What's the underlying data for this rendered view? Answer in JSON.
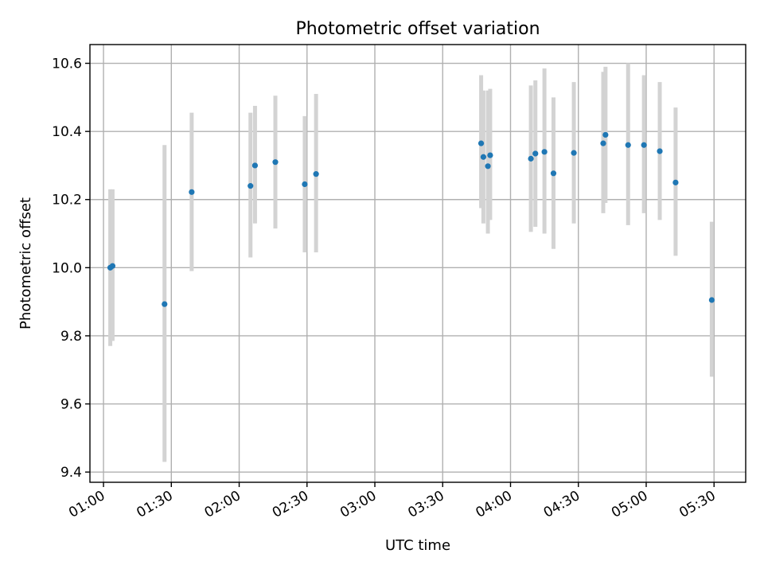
{
  "chart_data": {
    "type": "scatter",
    "title": "Photometric offset variation",
    "xlabel": "UTC time",
    "ylabel": "Photometric offset",
    "x_range": [
      "00:54",
      "05:44"
    ],
    "ylim": [
      9.37,
      10.655
    ],
    "x_ticks": [
      "01:00",
      "01:30",
      "02:00",
      "02:30",
      "03:00",
      "03:30",
      "04:00",
      "04:30",
      "05:00",
      "05:30"
    ],
    "y_ticks": [
      "9.4",
      "9.6",
      "9.8",
      "10.0",
      "10.2",
      "10.4",
      "10.6"
    ],
    "grid": true,
    "point_color": "#1f77b4",
    "errorbar_color": "#d3d3d3",
    "points": [
      {
        "x": "01:03",
        "y": 10.0,
        "err_low": 9.77,
        "err_high": 10.23
      },
      {
        "x": "01:04",
        "y": 10.005,
        "err_low": 9.785,
        "err_high": 10.23
      },
      {
        "x": "01:27",
        "y": 9.893,
        "err_low": 9.43,
        "err_high": 10.36
      },
      {
        "x": "01:39",
        "y": 10.222,
        "err_low": 9.99,
        "err_high": 10.455
      },
      {
        "x": "02:05",
        "y": 10.24,
        "err_low": 10.03,
        "err_high": 10.455
      },
      {
        "x": "02:07",
        "y": 10.3,
        "err_low": 10.13,
        "err_high": 10.475
      },
      {
        "x": "02:16",
        "y": 10.31,
        "err_low": 10.115,
        "err_high": 10.505
      },
      {
        "x": "02:29",
        "y": 10.245,
        "err_low": 10.045,
        "err_high": 10.445
      },
      {
        "x": "02:34",
        "y": 10.275,
        "err_low": 10.045,
        "err_high": 10.51
      },
      {
        "x": "03:47",
        "y": 10.365,
        "err_low": 10.175,
        "err_high": 10.565
      },
      {
        "x": "03:48",
        "y": 10.325,
        "err_low": 10.13,
        "err_high": 10.52
      },
      {
        "x": "03:50",
        "y": 10.298,
        "err_low": 10.1,
        "err_high": 10.52
      },
      {
        "x": "03:51",
        "y": 10.33,
        "err_low": 10.14,
        "err_high": 10.525
      },
      {
        "x": "04:09",
        "y": 10.32,
        "err_low": 10.105,
        "err_high": 10.535
      },
      {
        "x": "04:11",
        "y": 10.335,
        "err_low": 10.12,
        "err_high": 10.55
      },
      {
        "x": "04:15",
        "y": 10.34,
        "err_low": 10.1,
        "err_high": 10.585
      },
      {
        "x": "04:19",
        "y": 10.277,
        "err_low": 10.055,
        "err_high": 10.5
      },
      {
        "x": "04:28",
        "y": 10.337,
        "err_low": 10.13,
        "err_high": 10.545
      },
      {
        "x": "04:41",
        "y": 10.365,
        "err_low": 10.16,
        "err_high": 10.575
      },
      {
        "x": "04:42",
        "y": 10.39,
        "err_low": 10.19,
        "err_high": 10.59
      },
      {
        "x": "04:52",
        "y": 10.36,
        "err_low": 10.125,
        "err_high": 10.6
      },
      {
        "x": "04:59",
        "y": 10.36,
        "err_low": 10.16,
        "err_high": 10.565
      },
      {
        "x": "05:06",
        "y": 10.342,
        "err_low": 10.14,
        "err_high": 10.545
      },
      {
        "x": "05:13",
        "y": 10.25,
        "err_low": 10.035,
        "err_high": 10.47
      },
      {
        "x": "05:29",
        "y": 9.905,
        "err_low": 9.68,
        "err_high": 10.135
      }
    ]
  }
}
